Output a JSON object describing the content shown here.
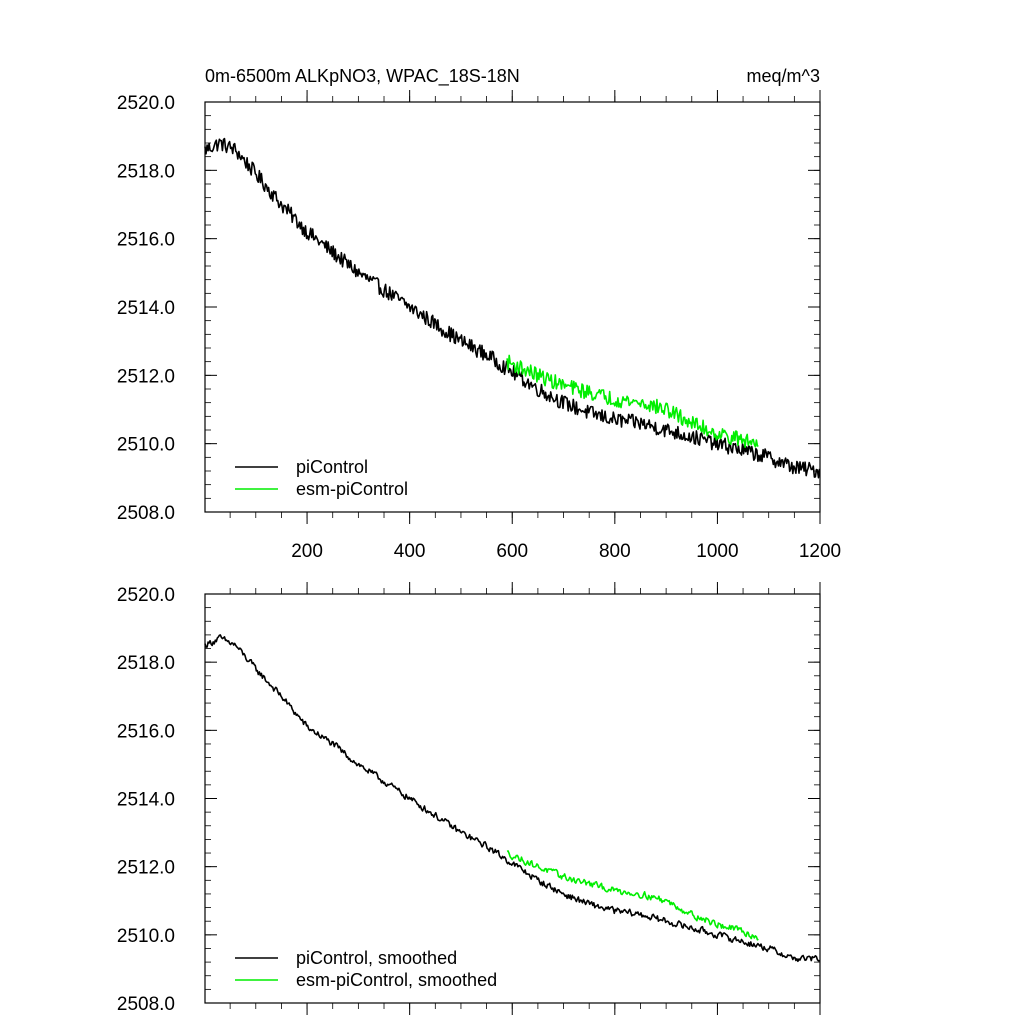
{
  "colors": {
    "piControl": "#000000",
    "esm": "#00ee00",
    "axis": "#000000"
  },
  "chart_data": [
    {
      "type": "line",
      "title": "0m-6500m ALKpNO3, WPAC_18S-18N",
      "units": "meq/m^3",
      "xlim": [
        1,
        1200
      ],
      "ylim": [
        2508.0,
        2520.0
      ],
      "xticks": [
        200,
        400,
        600,
        800,
        1000,
        1200
      ],
      "xtick_labels": [
        "200",
        "400",
        "600",
        "800",
        "1000",
        "1200"
      ],
      "yticks": [
        2508,
        2510,
        2512,
        2514,
        2516,
        2518,
        2520
      ],
      "ytick_labels": [
        "2508.0",
        "2510.0",
        "2512.0",
        "2514.0",
        "2516.0",
        "2518.0",
        "2520.0"
      ],
      "legend": "bottom-left",
      "series": [
        {
          "name": "piControl",
          "x": [
            1,
            30,
            60,
            100,
            150,
            200,
            250,
            300,
            350,
            400,
            450,
            500,
            550,
            600,
            650,
            700,
            750,
            800,
            850,
            900,
            950,
            1000,
            1050,
            1100,
            1150,
            1200
          ],
          "values": [
            2518.6,
            2518.8,
            2518.6,
            2517.9,
            2517.0,
            2516.2,
            2515.6,
            2515.0,
            2514.5,
            2514.0,
            2513.5,
            2513.0,
            2512.6,
            2512.1,
            2511.6,
            2511.2,
            2510.9,
            2510.7,
            2510.6,
            2510.4,
            2510.2,
            2510.0,
            2509.8,
            2509.6,
            2509.3,
            2509.2
          ],
          "noise": 0.22
        },
        {
          "name": "esm-piControl",
          "x": [
            590,
            620,
            650,
            700,
            750,
            800,
            850,
            900,
            950,
            1000,
            1050,
            1080
          ],
          "values": [
            2512.4,
            2512.2,
            2512.0,
            2511.7,
            2511.5,
            2511.3,
            2511.2,
            2511.0,
            2510.6,
            2510.3,
            2510.1,
            2510.0
          ],
          "noise": 0.22
        }
      ]
    },
    {
      "type": "line",
      "title": "",
      "units": "",
      "xlim": [
        1,
        1200
      ],
      "ylim": [
        2508.0,
        2520.0
      ],
      "xticks": [
        200,
        400,
        600,
        800,
        1000,
        1200
      ],
      "xtick_labels": [],
      "yticks": [
        2508,
        2510,
        2512,
        2514,
        2516,
        2518,
        2520
      ],
      "ytick_labels": [
        "2508.0",
        "2510.0",
        "2512.0",
        "2514.0",
        "2516.0",
        "2518.0",
        "2520.0"
      ],
      "legend": "bottom-left",
      "series": [
        {
          "name": "piControl, smoothed",
          "x": [
            1,
            30,
            60,
            100,
            150,
            200,
            250,
            300,
            350,
            400,
            450,
            500,
            550,
            600,
            650,
            700,
            750,
            800,
            850,
            900,
            950,
            1000,
            1050,
            1100,
            1150,
            1200
          ],
          "values": [
            2518.5,
            2518.7,
            2518.5,
            2517.8,
            2517.0,
            2516.1,
            2515.6,
            2515.0,
            2514.5,
            2514.0,
            2513.5,
            2513.0,
            2512.6,
            2512.1,
            2511.6,
            2511.2,
            2510.9,
            2510.7,
            2510.6,
            2510.4,
            2510.2,
            2510.0,
            2509.8,
            2509.6,
            2509.3,
            2509.3
          ],
          "noise": 0.1
        },
        {
          "name": "esm-piControl, smoothed",
          "x": [
            590,
            620,
            650,
            700,
            750,
            800,
            850,
            900,
            950,
            1000,
            1050,
            1080
          ],
          "values": [
            2512.4,
            2512.2,
            2512.0,
            2511.7,
            2511.5,
            2511.3,
            2511.2,
            2511.0,
            2510.6,
            2510.3,
            2510.1,
            2509.9
          ],
          "noise": 0.1
        }
      ]
    }
  ]
}
